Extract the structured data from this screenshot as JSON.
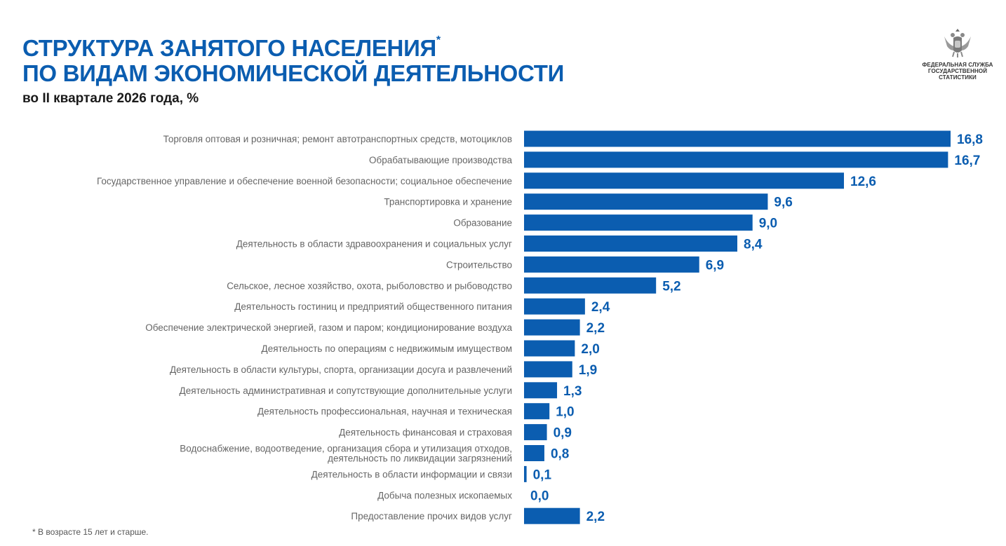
{
  "header": {
    "title_line1": "СТРУКТУРА ЗАНЯТОГО НАСЕЛЕНИЯ",
    "title_mark": "*",
    "title_line2": "ПО ВИДАМ ЭКОНОМИЧЕСКОЙ ДЕЯТЕЛЬНОСТИ",
    "subtitle": "во II квартале 2026 года, %"
  },
  "logo": {
    "line1": "ФЕДЕРАЛЬНАЯ СЛУЖБА",
    "line2": "ГОСУДАРСТВЕННОЙ",
    "line3": "СТАТИСТИКИ"
  },
  "footnote": "* В возрасте 15 лет и старше.",
  "colors": {
    "bar": "#0b5db0",
    "title": "#0b5db0",
    "value": "#0b5db0",
    "label": "#666666"
  },
  "chart_data": {
    "type": "bar",
    "orientation": "horizontal",
    "title": "СТРУКТУРА ЗАНЯТОГО НАСЕЛЕНИЯ ПО ВИДАМ ЭКОНОМИЧЕСКОЙ ДЕЯТЕЛЬНОСТИ",
    "subtitle": "во II квартале 2026 года, %",
    "xlim": [
      0,
      16.8
    ],
    "grid": false,
    "legend": "none",
    "categories": [
      [
        "Торговля оптовая и розничная; ремонт автотранспортных средств, мотоциклов"
      ],
      [
        "Обрабатывающие производства"
      ],
      [
        "Государственное управление и обеспечение военной безопасности;  социальное обеспечение"
      ],
      [
        "Транспортировка и хранение"
      ],
      [
        "Образование"
      ],
      [
        "Деятельность в области здравоохранения и социальных услуг"
      ],
      [
        "Строительство"
      ],
      [
        "Сельское, лесное хозяйство, охота, рыболовство и рыбоводство"
      ],
      [
        "Деятельность гостиниц и предприятий общественного питания"
      ],
      [
        "Обеспечение электрической энергией, газом и паром; кондиционирование воздуха"
      ],
      [
        "Деятельность по операциям с недвижимым имуществом"
      ],
      [
        "Деятельность в области культуры, спорта, организации досуга и развлечений"
      ],
      [
        "Деятельность административная и сопутствующие дополнительные услуги"
      ],
      [
        "Деятельность профессиональная, научная и техническая"
      ],
      [
        "Деятельность финансовая и страховая"
      ],
      [
        "Водоснабжение, водоотведение, организация сбора  и утилизация отходов,",
        "деятельность по ликвидации загрязнений"
      ],
      [
        "Деятельность в области информации и связи"
      ],
      [
        "Добыча полезных ископаемых"
      ],
      [
        "Предоставление прочих видов услуг"
      ]
    ],
    "values": [
      16.8,
      16.7,
      12.6,
      9.6,
      9.0,
      8.4,
      6.9,
      5.2,
      2.4,
      2.2,
      2.0,
      1.9,
      1.3,
      1.0,
      0.9,
      0.8,
      0.1,
      0.0,
      2.2
    ],
    "value_labels": [
      "16,8",
      "16,7",
      "12,6",
      "9,6",
      "9,0",
      "8,4",
      "6,9",
      "5,2",
      "2,4",
      "2,2",
      "2,0",
      "1,9",
      "1,3",
      "1,0",
      "0,9",
      "0,8",
      "0,1",
      "0,0",
      "2,2"
    ]
  }
}
